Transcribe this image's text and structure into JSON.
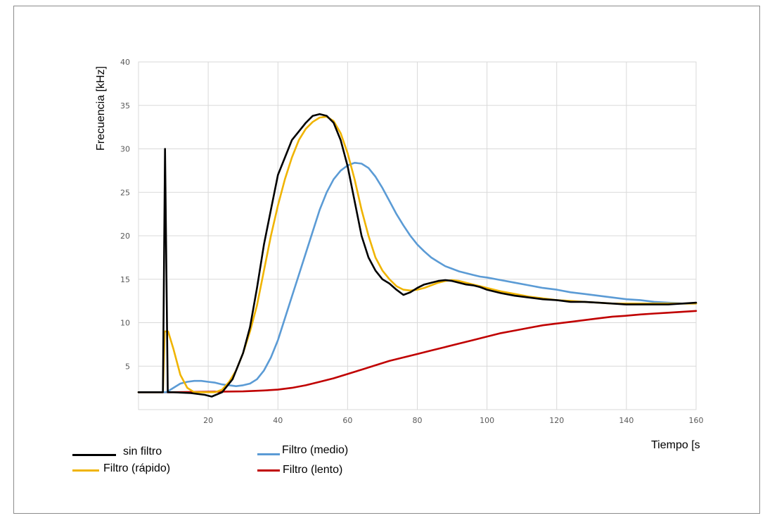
{
  "chart_data": {
    "type": "line",
    "xlabel": "Tiempo [s",
    "ylabel": "Frecuencia [kHz]",
    "xlim": [
      0,
      160
    ],
    "ylim": [
      0,
      40
    ],
    "xticks": [
      20,
      40,
      60,
      80,
      100,
      120,
      140,
      160
    ],
    "yticks": [
      5,
      10,
      15,
      20,
      25,
      30,
      35,
      40
    ],
    "grid": true,
    "legend_position": "bottom-left",
    "series": [
      {
        "name": "sin filtro",
        "color": "#000000",
        "points": [
          [
            0,
            2
          ],
          [
            7,
            2
          ],
          [
            7.6,
            30
          ],
          [
            8.4,
            2
          ],
          [
            9,
            2
          ],
          [
            10,
            2
          ],
          [
            15,
            1.9
          ],
          [
            19,
            1.7
          ],
          [
            21,
            1.5
          ],
          [
            24,
            2
          ],
          [
            27,
            3.5
          ],
          [
            30,
            6.5
          ],
          [
            32,
            9.5
          ],
          [
            34,
            14
          ],
          [
            36,
            19
          ],
          [
            38,
            23
          ],
          [
            40,
            27
          ],
          [
            42,
            29
          ],
          [
            44,
            31
          ],
          [
            46,
            32
          ],
          [
            48,
            33
          ],
          [
            50,
            33.8
          ],
          [
            52,
            34
          ],
          [
            54,
            33.8
          ],
          [
            56,
            33
          ],
          [
            58,
            31
          ],
          [
            60,
            28
          ],
          [
            62,
            24
          ],
          [
            64,
            20
          ],
          [
            66,
            17.5
          ],
          [
            68,
            16
          ],
          [
            70,
            15
          ],
          [
            72,
            14.5
          ],
          [
            74,
            13.8
          ],
          [
            76,
            13.2
          ],
          [
            78,
            13.5
          ],
          [
            80,
            14
          ],
          [
            82,
            14.4
          ],
          [
            84,
            14.6
          ],
          [
            86,
            14.8
          ],
          [
            88,
            14.9
          ],
          [
            90,
            14.8
          ],
          [
            92,
            14.6
          ],
          [
            94,
            14.4
          ],
          [
            96,
            14.3
          ],
          [
            98,
            14.1
          ],
          [
            100,
            13.8
          ],
          [
            104,
            13.4
          ],
          [
            108,
            13.1
          ],
          [
            112,
            12.9
          ],
          [
            116,
            12.7
          ],
          [
            120,
            12.6
          ],
          [
            124,
            12.4
          ],
          [
            128,
            12.4
          ],
          [
            132,
            12.3
          ],
          [
            136,
            12.2
          ],
          [
            140,
            12.1
          ],
          [
            144,
            12.1
          ],
          [
            148,
            12.1
          ],
          [
            152,
            12.1
          ],
          [
            156,
            12.2
          ],
          [
            160,
            12.3
          ]
        ]
      },
      {
        "name": "Filtro (rápido)",
        "color": "#f0b400",
        "points": [
          [
            0,
            2
          ],
          [
            7,
            2
          ],
          [
            7.5,
            9
          ],
          [
            8.5,
            9
          ],
          [
            10,
            7
          ],
          [
            12,
            4
          ],
          [
            14,
            2.5
          ],
          [
            16,
            2
          ],
          [
            18,
            2
          ],
          [
            20,
            2
          ],
          [
            22,
            2
          ],
          [
            24,
            2.3
          ],
          [
            26,
            3.2
          ],
          [
            28,
            4.5
          ],
          [
            30,
            6.5
          ],
          [
            32,
            9
          ],
          [
            34,
            12
          ],
          [
            36,
            16
          ],
          [
            38,
            20
          ],
          [
            40,
            23.5
          ],
          [
            42,
            26.5
          ],
          [
            44,
            29
          ],
          [
            46,
            31
          ],
          [
            48,
            32.3
          ],
          [
            50,
            33.1
          ],
          [
            52,
            33.6
          ],
          [
            54,
            33.7
          ],
          [
            56,
            33.2
          ],
          [
            58,
            31.8
          ],
          [
            60,
            29.5
          ],
          [
            62,
            26.5
          ],
          [
            64,
            23
          ],
          [
            66,
            20
          ],
          [
            68,
            17.5
          ],
          [
            70,
            16
          ],
          [
            72,
            15
          ],
          [
            74,
            14.2
          ],
          [
            76,
            13.8
          ],
          [
            78,
            13.7
          ],
          [
            80,
            13.8
          ],
          [
            82,
            14
          ],
          [
            84,
            14.3
          ],
          [
            86,
            14.6
          ],
          [
            88,
            14.8
          ],
          [
            90,
            14.9
          ],
          [
            92,
            14.8
          ],
          [
            94,
            14.6
          ],
          [
            96,
            14.4
          ],
          [
            98,
            14.2
          ],
          [
            100,
            14
          ],
          [
            104,
            13.6
          ],
          [
            108,
            13.3
          ],
          [
            112,
            13
          ],
          [
            116,
            12.8
          ],
          [
            120,
            12.6
          ],
          [
            124,
            12.5
          ],
          [
            128,
            12.4
          ],
          [
            132,
            12.3
          ],
          [
            136,
            12.2
          ],
          [
            140,
            12.2
          ],
          [
            144,
            12.2
          ],
          [
            148,
            12.2
          ],
          [
            152,
            12.2
          ],
          [
            156,
            12.2
          ],
          [
            160,
            12.2
          ]
        ]
      },
      {
        "name": "Filtro (medio)",
        "color": "#5b9bd5",
        "points": [
          [
            0,
            2
          ],
          [
            8,
            2
          ],
          [
            10,
            2.5
          ],
          [
            12,
            3
          ],
          [
            14,
            3.2
          ],
          [
            16,
            3.3
          ],
          [
            18,
            3.3
          ],
          [
            20,
            3.2
          ],
          [
            22,
            3.1
          ],
          [
            24,
            2.9
          ],
          [
            26,
            2.8
          ],
          [
            28,
            2.7
          ],
          [
            30,
            2.8
          ],
          [
            32,
            3
          ],
          [
            34,
            3.5
          ],
          [
            36,
            4.5
          ],
          [
            38,
            6
          ],
          [
            40,
            8
          ],
          [
            42,
            10.5
          ],
          [
            44,
            13
          ],
          [
            46,
            15.5
          ],
          [
            48,
            18
          ],
          [
            50,
            20.5
          ],
          [
            52,
            23
          ],
          [
            54,
            25
          ],
          [
            56,
            26.5
          ],
          [
            58,
            27.5
          ],
          [
            60,
            28.1
          ],
          [
            62,
            28.4
          ],
          [
            64,
            28.3
          ],
          [
            66,
            27.8
          ],
          [
            68,
            26.8
          ],
          [
            70,
            25.5
          ],
          [
            72,
            24
          ],
          [
            74,
            22.5
          ],
          [
            76,
            21.2
          ],
          [
            78,
            20
          ],
          [
            80,
            19
          ],
          [
            82,
            18.2
          ],
          [
            84,
            17.5
          ],
          [
            86,
            17
          ],
          [
            88,
            16.5
          ],
          [
            90,
            16.2
          ],
          [
            92,
            15.9
          ],
          [
            94,
            15.7
          ],
          [
            96,
            15.5
          ],
          [
            98,
            15.3
          ],
          [
            100,
            15.2
          ],
          [
            104,
            14.9
          ],
          [
            108,
            14.6
          ],
          [
            112,
            14.3
          ],
          [
            116,
            14
          ],
          [
            120,
            13.8
          ],
          [
            124,
            13.5
          ],
          [
            128,
            13.3
          ],
          [
            132,
            13.1
          ],
          [
            136,
            12.9
          ],
          [
            140,
            12.7
          ],
          [
            144,
            12.6
          ],
          [
            148,
            12.4
          ],
          [
            152,
            12.3
          ],
          [
            156,
            12.2
          ],
          [
            160,
            12.2
          ]
        ]
      },
      {
        "name": "Filtro (lento)",
        "color": "#c00000",
        "points": [
          [
            0,
            2
          ],
          [
            10,
            2
          ],
          [
            20,
            2.05
          ],
          [
            30,
            2.1
          ],
          [
            36,
            2.2
          ],
          [
            40,
            2.3
          ],
          [
            44,
            2.5
          ],
          [
            48,
            2.8
          ],
          [
            52,
            3.2
          ],
          [
            56,
            3.6
          ],
          [
            60,
            4.1
          ],
          [
            64,
            4.6
          ],
          [
            68,
            5.1
          ],
          [
            72,
            5.6
          ],
          [
            76,
            6
          ],
          [
            80,
            6.4
          ],
          [
            84,
            6.8
          ],
          [
            88,
            7.2
          ],
          [
            92,
            7.6
          ],
          [
            96,
            8
          ],
          [
            100,
            8.4
          ],
          [
            104,
            8.8
          ],
          [
            108,
            9.1
          ],
          [
            112,
            9.4
          ],
          [
            116,
            9.7
          ],
          [
            120,
            9.9
          ],
          [
            124,
            10.1
          ],
          [
            128,
            10.3
          ],
          [
            132,
            10.5
          ],
          [
            136,
            10.7
          ],
          [
            140,
            10.8
          ],
          [
            144,
            10.95
          ],
          [
            148,
            11.05
          ],
          [
            152,
            11.15
          ],
          [
            156,
            11.25
          ],
          [
            160,
            11.35
          ]
        ]
      }
    ]
  }
}
